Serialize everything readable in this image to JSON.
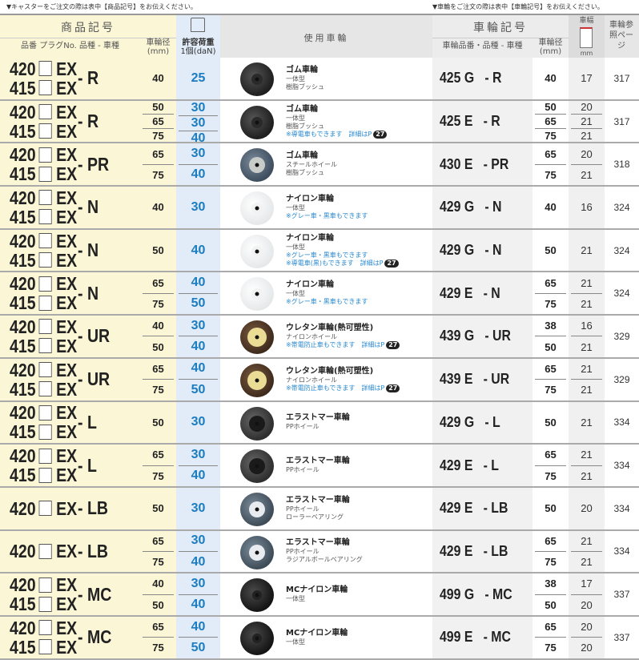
{
  "notes": {
    "left": "▼キャスターをご注文の際は表中【商品記号】をお伝えください。",
    "right": "▼車輪をご注文の際は表中【車輪記号】をお伝えください。"
  },
  "header": {
    "product_code": "商品記号",
    "product_code_sub": "品番 プラグNo. 品種 - 車種",
    "caster_diameter": "車輪径",
    "caster_diameter_unit": "(mm)",
    "load": "許容荷重",
    "load_unit": "1個(daN)",
    "wheel_used": "使用車輪",
    "wheel_code": "車輪記号",
    "wheel_code_sub": "車輪品番・品種 - 車種",
    "wheel_diameter": "車輪径",
    "wheel_diameter_unit": "(mm)",
    "wheel_width": "車幅",
    "wheel_width_unit": "mm",
    "ref_page": "車輪参照ページ"
  },
  "colors": {
    "code_bg": "#fbf6d6",
    "load_bg": "#e1ecf8",
    "load_text": "#1b7cc0",
    "note_text": "#2a8ad0"
  },
  "detail_label": "詳細はP",
  "detail_page": "27",
  "rows": [
    {
      "models": [
        "420",
        "415"
      ],
      "type": "- R",
      "sizes": [
        {
          "d": "40",
          "load": "25"
        }
      ],
      "wheel": {
        "title": "ゴム車輪",
        "lines": [
          "一体型",
          "樹脂ブッシュ"
        ],
        "notes": []
      },
      "wheel_code": "425 G   - R",
      "wheel_diameters": [
        "40"
      ],
      "widths": [
        "17"
      ],
      "page": "317",
      "icon": "rubber-wheel-black"
    },
    {
      "models": [
        "420",
        "415"
      ],
      "type": "- R",
      "sizes": [
        {
          "d": "50",
          "load": "30"
        },
        {
          "d": "65",
          "load": "30"
        },
        {
          "d": "75",
          "load": "40"
        }
      ],
      "wheel": {
        "title": "ゴム車輪",
        "lines": [
          "一体型",
          "樹脂ブッシュ"
        ],
        "notes": [
          "※導電車もできます　詳細はP"
        ]
      },
      "wheel_code": "425 E   - R",
      "wheel_diameters": [
        "50",
        "65",
        "75"
      ],
      "widths": [
        "20",
        "21",
        "21"
      ],
      "page": "317",
      "icon": "rubber-wheel-black"
    },
    {
      "models": [
        "420",
        "415"
      ],
      "type": "- PR",
      "sizes": [
        {
          "d": "65",
          "load": "30"
        },
        {
          "d": "75",
          "load": "40"
        }
      ],
      "wheel": {
        "title": "ゴム車輪",
        "lines": [
          "スチールホイール",
          "樹脂ブッシュ"
        ],
        "notes": []
      },
      "wheel_code": "430 E   - PR",
      "wheel_diameters": [
        "65",
        "75"
      ],
      "widths": [
        "20",
        "21"
      ],
      "page": "318",
      "icon": "rubber-wheel-steel"
    },
    {
      "models": [
        "420",
        "415"
      ],
      "type": "- N",
      "sizes": [
        {
          "d": "40",
          "load": "30"
        }
      ],
      "wheel": {
        "title": "ナイロン車輪",
        "lines": [
          "一体型"
        ],
        "notes": [
          "※グレー車・黒車もできます"
        ]
      },
      "wheel_code": "429 G   - N",
      "wheel_diameters": [
        "40"
      ],
      "widths": [
        "16"
      ],
      "page": "324",
      "icon": "nylon-wheel"
    },
    {
      "models": [
        "420",
        "415"
      ],
      "type": "- N",
      "sizes": [
        {
          "d": "50",
          "load": "40"
        }
      ],
      "wheel": {
        "title": "ナイロン車輪",
        "lines": [
          "一体型"
        ],
        "notes": [
          "※グレー車・黒車もできます",
          "※導電車(黒)もできます　詳細はP"
        ]
      },
      "wheel_code": "429 G   - N",
      "wheel_diameters": [
        "50"
      ],
      "widths": [
        "21"
      ],
      "page": "324",
      "icon": "nylon-wheel"
    },
    {
      "models": [
        "420",
        "415"
      ],
      "type": "- N",
      "sizes": [
        {
          "d": "65",
          "load": "40"
        },
        {
          "d": "75",
          "load": "50"
        }
      ],
      "wheel": {
        "title": "ナイロン車輪",
        "lines": [
          "一体型"
        ],
        "notes": [
          "※グレー車・黒車もできます"
        ]
      },
      "wheel_code": "429 E   - N",
      "wheel_diameters": [
        "65",
        "75"
      ],
      "widths": [
        "21",
        "21"
      ],
      "page": "324",
      "icon": "nylon-wheel"
    },
    {
      "models": [
        "420",
        "415"
      ],
      "type": "- UR",
      "sizes": [
        {
          "d": "40",
          "load": "30"
        },
        {
          "d": "50",
          "load": "40"
        }
      ],
      "wheel": {
        "title": "ウレタン車輪(熱可塑性)",
        "lines": [
          "ナイロンホイール"
        ],
        "notes": [
          "※帯電防止車もできます　詳細はP"
        ]
      },
      "wheel_code": "439 G   - UR",
      "wheel_diameters": [
        "38",
        "50"
      ],
      "widths": [
        "16",
        "21"
      ],
      "page": "329",
      "icon": "urethane-wheel"
    },
    {
      "models": [
        "420",
        "415"
      ],
      "type": "- UR",
      "sizes": [
        {
          "d": "65",
          "load": "40"
        },
        {
          "d": "75",
          "load": "50"
        }
      ],
      "wheel": {
        "title": "ウレタン車輪(熱可塑性)",
        "lines": [
          "ナイロンホイール"
        ],
        "notes": [
          "※帯電防止車もできます　詳細はP"
        ]
      },
      "wheel_code": "439 E   - UR",
      "wheel_diameters": [
        "65",
        "75"
      ],
      "widths": [
        "21",
        "21"
      ],
      "page": "329",
      "icon": "urethane-wheel"
    },
    {
      "models": [
        "420",
        "415"
      ],
      "type": "- L",
      "sizes": [
        {
          "d": "50",
          "load": "30"
        }
      ],
      "wheel": {
        "title": "エラストマー車輪",
        "lines": [
          "PPホイール"
        ],
        "notes": []
      },
      "wheel_code": "429 G   - L",
      "wheel_diameters": [
        "50"
      ],
      "widths": [
        "21"
      ],
      "page": "334",
      "icon": "elastomer-wheel"
    },
    {
      "models": [
        "420",
        "415"
      ],
      "type": "- L",
      "sizes": [
        {
          "d": "65",
          "load": "30"
        },
        {
          "d": "75",
          "load": "40"
        }
      ],
      "wheel": {
        "title": "エラストマー車輪",
        "lines": [
          "PPホイール"
        ],
        "notes": []
      },
      "wheel_code": "429 E   - L",
      "wheel_diameters": [
        "65",
        "75"
      ],
      "widths": [
        "21",
        "21"
      ],
      "page": "334",
      "icon": "elastomer-wheel"
    },
    {
      "models": [
        "420"
      ],
      "type": "- LB",
      "sizes": [
        {
          "d": "50",
          "load": "30"
        }
      ],
      "wheel": {
        "title": "エラストマー車輪",
        "lines": [
          "PPホイール",
          "ローラーベアリング"
        ],
        "notes": []
      },
      "wheel_code": "429 E   - LB",
      "wheel_diameters": [
        "50"
      ],
      "widths": [
        "20"
      ],
      "page": "334",
      "icon": "elastomer-bearing-wheel"
    },
    {
      "models": [
        "420"
      ],
      "type": "- LB",
      "sizes": [
        {
          "d": "65",
          "load": "30"
        },
        {
          "d": "75",
          "load": "40"
        }
      ],
      "wheel": {
        "title": "エラストマー車輪",
        "lines": [
          "PPホイール",
          "ラジアルボールベアリング"
        ],
        "notes": []
      },
      "wheel_code": "429 E   - LB",
      "wheel_diameters": [
        "65",
        "75"
      ],
      "widths": [
        "21",
        "21"
      ],
      "page": "334",
      "icon": "elastomer-bearing-wheel"
    },
    {
      "models": [
        "420",
        "415"
      ],
      "type": "- MC",
      "sizes": [
        {
          "d": "40",
          "load": "30"
        },
        {
          "d": "50",
          "load": "40"
        }
      ],
      "wheel": {
        "title": "MCナイロン車輪",
        "lines": [
          "一体型"
        ],
        "notes": []
      },
      "wheel_code": "499 G   - MC",
      "wheel_diameters": [
        "38",
        "50"
      ],
      "widths": [
        "17",
        "20"
      ],
      "page": "337",
      "icon": "mc-nylon-wheel"
    },
    {
      "models": [
        "420",
        "415"
      ],
      "type": "- MC",
      "sizes": [
        {
          "d": "65",
          "load": "40"
        },
        {
          "d": "75",
          "load": "50"
        }
      ],
      "wheel": {
        "title": "MCナイロン車輪",
        "lines": [
          "一体型"
        ],
        "notes": []
      },
      "wheel_code": "499 E   - MC",
      "wheel_diameters": [
        "65",
        "75"
      ],
      "widths": [
        "20",
        "20"
      ],
      "page": "337",
      "icon": "mc-nylon-wheel"
    }
  ]
}
